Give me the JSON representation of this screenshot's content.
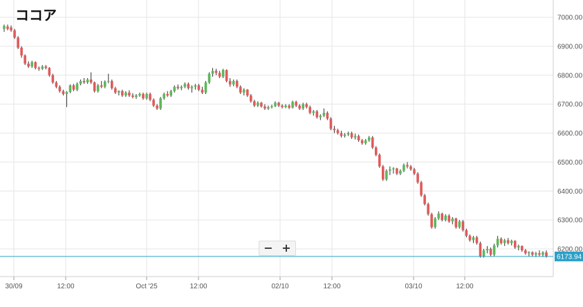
{
  "chart_data": {
    "type": "candlestick",
    "title": "ココア",
    "ylim": [
      6130,
      7050
    ],
    "y_ticks": [
      "7000.00",
      "6900.00",
      "6800.00",
      "6700.00",
      "6600.00",
      "6500.00",
      "6400.00",
      "6300.00",
      "6200.00"
    ],
    "x_ticks": [
      "30/09",
      "12:00",
      "Oct '25",
      "12:00",
      "02/10",
      "12:00",
      "03/10",
      "12:00"
    ],
    "current_price": 6173.94,
    "current_price_label": "6173.94",
    "grid": true,
    "colors": {
      "up": "#5cb85c",
      "down": "#e05a5a",
      "price_line": "#2aa0c9"
    },
    "candles": [
      [
        6960,
        6975,
        6950,
        6970
      ],
      [
        6968,
        6975,
        6955,
        6960
      ],
      [
        6965,
        6972,
        6950,
        6955
      ],
      [
        6955,
        6960,
        6925,
        6930
      ],
      [
        6930,
        6935,
        6890,
        6895
      ],
      [
        6895,
        6900,
        6860,
        6868
      ],
      [
        6868,
        6872,
        6835,
        6840
      ],
      [
        6840,
        6848,
        6825,
        6830
      ],
      [
        6830,
        6850,
        6825,
        6845
      ],
      [
        6845,
        6848,
        6820,
        6825
      ],
      [
        6825,
        6830,
        6815,
        6822
      ],
      [
        6822,
        6835,
        6818,
        6830
      ],
      [
        6830,
        6835,
        6820,
        6825
      ],
      [
        6825,
        6828,
        6795,
        6800
      ],
      [
        6800,
        6805,
        6770,
        6775
      ],
      [
        6775,
        6780,
        6755,
        6760
      ],
      [
        6760,
        6765,
        6740,
        6745
      ],
      [
        6745,
        6750,
        6730,
        6735
      ],
      [
        6735,
        6745,
        6690,
        6742
      ],
      [
        6742,
        6768,
        6738,
        6765
      ],
      [
        6765,
        6770,
        6745,
        6750
      ],
      [
        6750,
        6775,
        6745,
        6770
      ],
      [
        6770,
        6785,
        6765,
        6780
      ],
      [
        6780,
        6790,
        6770,
        6775
      ],
      [
        6775,
        6790,
        6770,
        6785
      ],
      [
        6785,
        6810,
        6770,
        6775
      ],
      [
        6775,
        6778,
        6740,
        6745
      ],
      [
        6745,
        6770,
        6740,
        6765
      ],
      [
        6765,
        6780,
        6755,
        6760
      ],
      [
        6760,
        6782,
        6755,
        6778
      ],
      [
        6778,
        6805,
        6772,
        6780
      ],
      [
        6780,
        6785,
        6750,
        6755
      ],
      [
        6755,
        6760,
        6735,
        6740
      ],
      [
        6740,
        6748,
        6730,
        6745
      ],
      [
        6745,
        6750,
        6725,
        6730
      ],
      [
        6730,
        6745,
        6725,
        6740
      ],
      [
        6740,
        6748,
        6725,
        6730
      ],
      [
        6730,
        6738,
        6720,
        6725
      ],
      [
        6725,
        6735,
        6718,
        6730
      ],
      [
        6730,
        6740,
        6725,
        6735
      ],
      [
        6735,
        6740,
        6715,
        6720
      ],
      [
        6720,
        6740,
        6715,
        6735
      ],
      [
        6735,
        6740,
        6710,
        6715
      ],
      [
        6715,
        6720,
        6690,
        6695
      ],
      [
        6695,
        6700,
        6680,
        6685
      ],
      [
        6685,
        6725,
        6680,
        6720
      ],
      [
        6720,
        6740,
        6715,
        6735
      ],
      [
        6735,
        6745,
        6725,
        6730
      ],
      [
        6730,
        6750,
        6725,
        6745
      ],
      [
        6745,
        6765,
        6740,
        6760
      ],
      [
        6760,
        6768,
        6750,
        6755
      ],
      [
        6755,
        6765,
        6748,
        6760
      ],
      [
        6760,
        6775,
        6755,
        6770
      ],
      [
        6770,
        6775,
        6750,
        6755
      ],
      [
        6755,
        6765,
        6740,
        6760
      ],
      [
        6760,
        6770,
        6750,
        6765
      ],
      [
        6765,
        6770,
        6745,
        6750
      ],
      [
        6750,
        6760,
        6735,
        6740
      ],
      [
        6740,
        6780,
        6735,
        6775
      ],
      [
        6775,
        6810,
        6770,
        6805
      ],
      [
        6805,
        6825,
        6795,
        6815
      ],
      [
        6815,
        6822,
        6800,
        6808
      ],
      [
        6808,
        6815,
        6790,
        6795
      ],
      [
        6795,
        6822,
        6790,
        6818
      ],
      [
        6818,
        6820,
        6775,
        6780
      ],
      [
        6780,
        6790,
        6760,
        6768
      ],
      [
        6768,
        6785,
        6762,
        6780
      ],
      [
        6780,
        6785,
        6755,
        6760
      ],
      [
        6760,
        6765,
        6735,
        6740
      ],
      [
        6740,
        6755,
        6730,
        6750
      ],
      [
        6750,
        6752,
        6725,
        6730
      ],
      [
        6730,
        6735,
        6705,
        6710
      ],
      [
        6710,
        6715,
        6690,
        6695
      ],
      [
        6695,
        6710,
        6690,
        6705
      ],
      [
        6705,
        6708,
        6688,
        6692
      ],
      [
        6692,
        6700,
        6680,
        6685
      ],
      [
        6685,
        6695,
        6680,
        6690
      ],
      [
        6690,
        6698,
        6685,
        6693
      ],
      [
        6693,
        6710,
        6690,
        6705
      ],
      [
        6705,
        6708,
        6690,
        6695
      ],
      [
        6695,
        6700,
        6685,
        6690
      ],
      [
        6690,
        6700,
        6686,
        6695
      ],
      [
        6695,
        6700,
        6683,
        6688
      ],
      [
        6688,
        6712,
        6685,
        6708
      ],
      [
        6708,
        6712,
        6690,
        6695
      ],
      [
        6695,
        6700,
        6680,
        6685
      ],
      [
        6685,
        6705,
        6680,
        6700
      ],
      [
        6700,
        6705,
        6685,
        6690
      ],
      [
        6690,
        6695,
        6665,
        6670
      ],
      [
        6670,
        6680,
        6660,
        6675
      ],
      [
        6675,
        6680,
        6650,
        6655
      ],
      [
        6655,
        6665,
        6645,
        6660
      ],
      [
        6660,
        6685,
        6655,
        6670
      ],
      [
        6670,
        6675,
        6645,
        6650
      ],
      [
        6650,
        6655,
        6610,
        6615
      ],
      [
        6615,
        6625,
        6600,
        6610
      ],
      [
        6610,
        6615,
        6595,
        6600
      ],
      [
        6600,
        6608,
        6585,
        6590
      ],
      [
        6590,
        6600,
        6585,
        6595
      ],
      [
        6595,
        6605,
        6590,
        6600
      ],
      [
        6600,
        6605,
        6580,
        6585
      ],
      [
        6585,
        6598,
        6578,
        6590
      ],
      [
        6590,
        6595,
        6570,
        6575
      ],
      [
        6575,
        6580,
        6560,
        6565
      ],
      [
        6565,
        6580,
        6560,
        6575
      ],
      [
        6575,
        6590,
        6570,
        6585
      ],
      [
        6585,
        6590,
        6545,
        6550
      ],
      [
        6550,
        6555,
        6520,
        6525
      ],
      [
        6525,
        6530,
        6480,
        6485
      ],
      [
        6485,
        6490,
        6435,
        6440
      ],
      [
        6440,
        6475,
        6435,
        6470
      ],
      [
        6470,
        6485,
        6455,
        6475
      ],
      [
        6475,
        6482,
        6460,
        6478
      ],
      [
        6478,
        6480,
        6455,
        6460
      ],
      [
        6460,
        6475,
        6455,
        6470
      ],
      [
        6470,
        6495,
        6465,
        6490
      ],
      [
        6490,
        6500,
        6478,
        6485
      ],
      [
        6485,
        6490,
        6470,
        6475
      ],
      [
        6475,
        6480,
        6455,
        6460
      ],
      [
        6460,
        6465,
        6425,
        6430
      ],
      [
        6430,
        6435,
        6380,
        6385
      ],
      [
        6385,
        6390,
        6350,
        6355
      ],
      [
        6355,
        6360,
        6315,
        6320
      ],
      [
        6320,
        6325,
        6270,
        6275
      ],
      [
        6275,
        6310,
        6270,
        6305
      ],
      [
        6305,
        6330,
        6300,
        6322
      ],
      [
        6322,
        6325,
        6295,
        6300
      ],
      [
        6300,
        6320,
        6295,
        6315
      ],
      [
        6315,
        6320,
        6290,
        6295
      ],
      [
        6295,
        6310,
        6285,
        6305
      ],
      [
        6305,
        6308,
        6270,
        6275
      ],
      [
        6275,
        6300,
        6270,
        6295
      ],
      [
        6295,
        6300,
        6260,
        6265
      ],
      [
        6265,
        6270,
        6240,
        6245
      ],
      [
        6245,
        6250,
        6225,
        6230
      ],
      [
        6230,
        6245,
        6220,
        6240
      ],
      [
        6240,
        6245,
        6215,
        6220
      ],
      [
        6220,
        6225,
        6170,
        6175
      ],
      [
        6175,
        6200,
        6170,
        6195
      ],
      [
        6195,
        6210,
        6185,
        6200
      ],
      [
        6200,
        6205,
        6175,
        6180
      ],
      [
        6180,
        6218,
        6175,
        6212
      ],
      [
        6212,
        6245,
        6205,
        6235
      ],
      [
        6235,
        6240,
        6215,
        6220
      ],
      [
        6220,
        6235,
        6210,
        6230
      ],
      [
        6230,
        6238,
        6215,
        6220
      ],
      [
        6220,
        6232,
        6212,
        6228
      ],
      [
        6228,
        6230,
        6200,
        6205
      ],
      [
        6205,
        6215,
        6195,
        6210
      ],
      [
        6210,
        6212,
        6190,
        6195
      ],
      [
        6195,
        6200,
        6180,
        6185
      ],
      [
        6185,
        6192,
        6175,
        6188
      ],
      [
        6188,
        6192,
        6175,
        6180
      ],
      [
        6180,
        6190,
        6172,
        6185
      ],
      [
        6185,
        6195,
        6175,
        6180
      ],
      [
        6180,
        6192,
        6172,
        6188
      ],
      [
        6188,
        6195,
        6170,
        6174
      ]
    ]
  },
  "controls": {
    "zoom_out": "−",
    "zoom_in": "+"
  }
}
